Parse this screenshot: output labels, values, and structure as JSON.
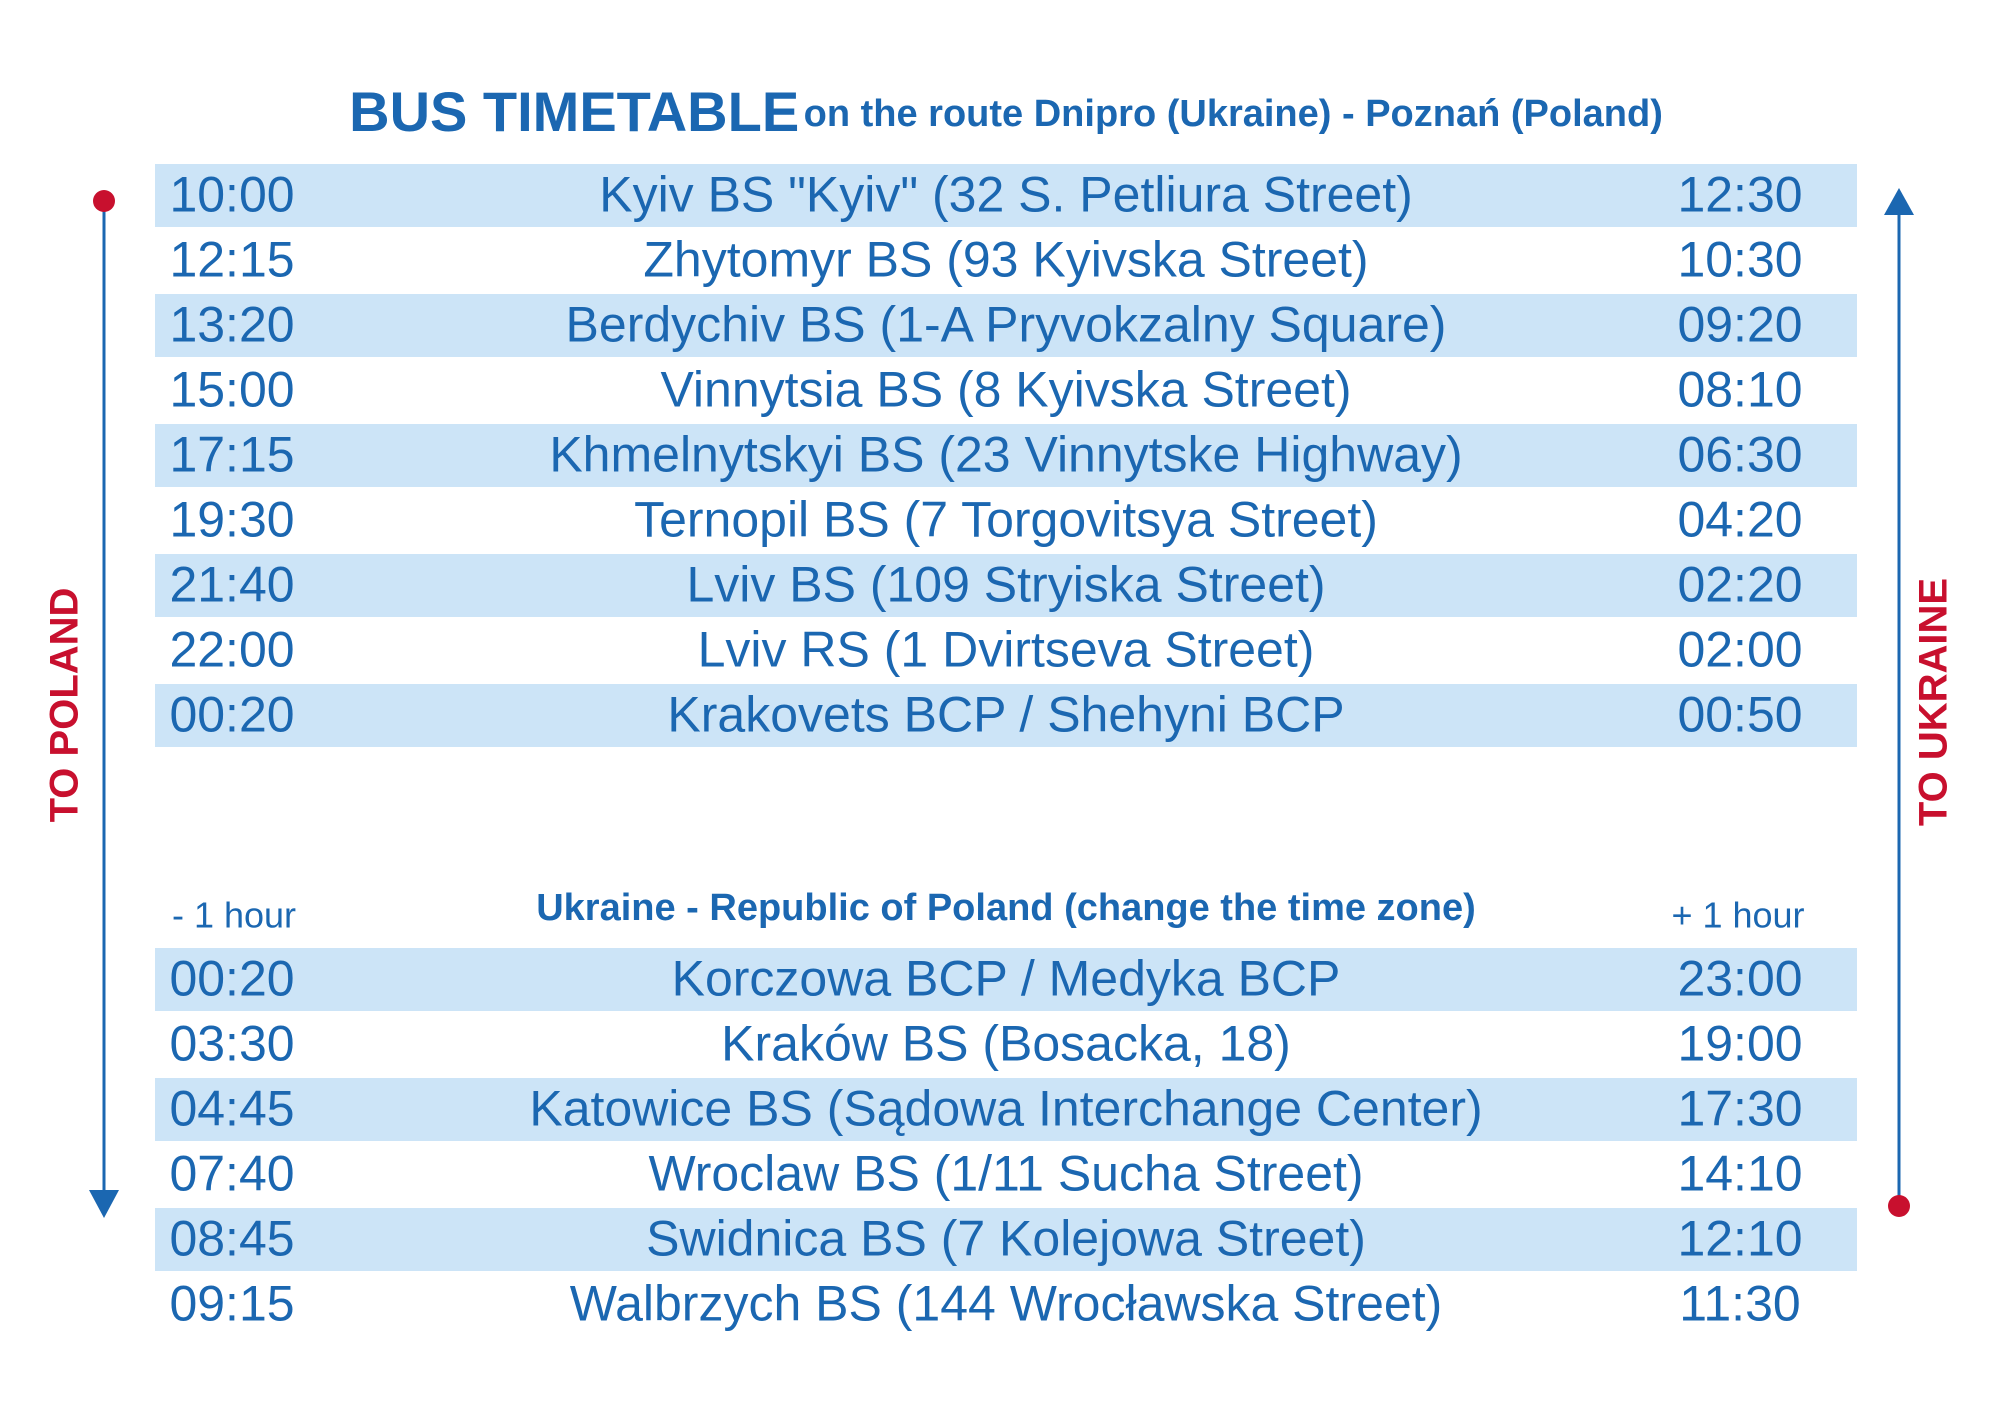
{
  "header": {
    "title": "BUS TIMETABLE",
    "subtitle": "on the route Dnipro (Ukraine) - Poznań (Poland)"
  },
  "left_label": "TO POLAND",
  "right_label": "TO UKRAINE",
  "table_ukraine": {
    "rows": [
      [
        "10:00",
        "Kyiv BS \"Kyiv\" (32 S. Petliura Street)",
        "12:30"
      ],
      [
        "12:15",
        "Zhytomyr BS (93 Kyivska Street)",
        "10:30"
      ],
      [
        "13:20",
        "Berdychiv BS (1-A Pryvokzalny Square)",
        "09:20"
      ],
      [
        "15:00",
        "Vinnytsia BS (8 Kyivska Street)",
        "08:10"
      ],
      [
        "17:15",
        "Khmelnytskyi BS (23 Vinnytske Highway)",
        "06:30"
      ],
      [
        "19:30",
        "Ternopil BS (7 Torgovitsya Street)",
        "04:20"
      ],
      [
        "21:40",
        "Lviv BS (109 Stryiska Street)",
        "02:20"
      ],
      [
        "22:00",
        "Lviv RS (1 Dvirtseva Street)",
        "02:00"
      ],
      [
        "00:20",
        "Krakovets BCP / Shehyni BCP",
        "00:50"
      ]
    ]
  },
  "time_zone": {
    "left": "- 1 hour",
    "center": "Ukraine - Republic of Poland (change the time zone)",
    "right": "+ 1 hour"
  },
  "table_poland": {
    "rows": [
      [
        "00:20",
        "Korczowa BCP / Medyka BCP",
        "23:00"
      ],
      [
        "03:30",
        "Kraków BS (Bosacka, 18)",
        "19:00"
      ],
      [
        "04:45",
        "Katowice BS (Sądowa Interchange Center)",
        "17:30"
      ],
      [
        "07:40",
        "Wroclaw BS (1/11 Sucha Street)",
        "14:10"
      ],
      [
        "08:45",
        "Swidnica BS (7 Kolejowa Street)",
        "12:10"
      ],
      [
        "09:15",
        "Walbrzych BS (144 Wrocławska Street)",
        "11:30"
      ]
    ]
  }
}
